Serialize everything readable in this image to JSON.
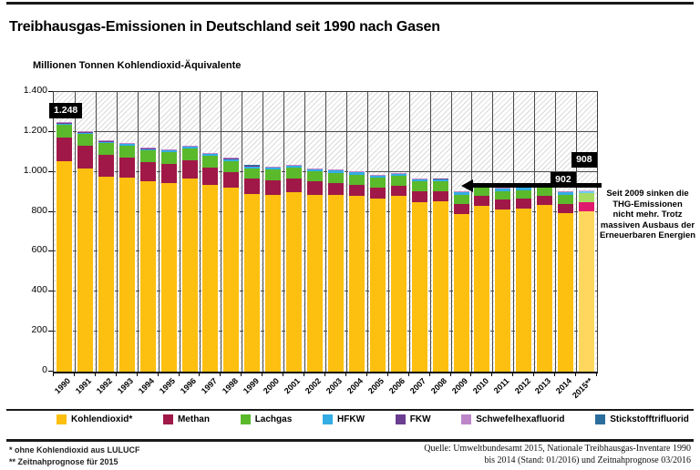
{
  "chart_data": {
    "type": "bar",
    "stacked": true,
    "title": "Treibhausgas-Emissionen in Deutschland seit 1990 nach Gasen",
    "axis_title": "Millionen Tonnen Kohlendioxid-Äquivalente",
    "categories": [
      "1990",
      "1991",
      "1992",
      "1993",
      "1994",
      "1995",
      "1996",
      "1997",
      "1998",
      "1999",
      "2000",
      "2001",
      "2002",
      "2003",
      "2004",
      "2005",
      "2006",
      "2007",
      "2008",
      "2009",
      "2010",
      "2011",
      "2012",
      "2013",
      "2014",
      "2015**"
    ],
    "series": [
      {
        "name": "Kohlendioxid*",
        "color": "#FDC010",
        "color_prognosis": "#FFD75E",
        "values": [
          1052,
          1018,
          978,
          972,
          951,
          945,
          967,
          934,
          919,
          889,
          886,
          899,
          886,
          884,
          878,
          866,
          878,
          850,
          853,
          789,
          832,
          812,
          818,
          835,
          795,
          801
        ]
      },
      {
        "name": "Methan",
        "color": "#A01848",
        "color_prognosis": "#E0196E",
        "values": [
          120,
          113,
          107,
          102,
          97,
          93,
          90,
          86,
          81,
          77,
          73,
          69,
          65,
          62,
          58,
          55,
          53,
          52,
          51,
          49,
          48,
          48,
          47,
          47,
          46,
          46
        ]
      },
      {
        "name": "Lachgas",
        "color": "#5BB92C",
        "color_prognosis": "#A8DB63",
        "values": [
          64,
          61,
          60,
          59,
          60,
          61,
          61,
          60,
          55,
          53,
          52,
          52,
          51,
          50,
          51,
          49,
          49,
          50,
          50,
          49,
          42,
          44,
          44,
          45,
          45,
          45
        ]
      },
      {
        "name": "HFKW",
        "color": "#33ADE3",
        "color_prognosis": "#70CBF1",
        "values": [
          5,
          5,
          5,
          6,
          6,
          7,
          7,
          8,
          9,
          9,
          9,
          10,
          10,
          10,
          10,
          10,
          10,
          10,
          10,
          11,
          11,
          11,
          11,
          11,
          11,
          11
        ]
      },
      {
        "name": "FKW",
        "color": "#6B3D91",
        "color_prognosis": "#9A77BC",
        "values": [
          3,
          3,
          3,
          3,
          3,
          3,
          3,
          3,
          2,
          2,
          2,
          2,
          2,
          2,
          2,
          2,
          2,
          2,
          2,
          2,
          2,
          2,
          2,
          2,
          2,
          2
        ]
      },
      {
        "name": "Schwefelhexafluorid",
        "color": "#BE85C9",
        "color_prognosis": "#D7B0DF",
        "values": [
          4,
          4,
          4,
          4,
          4,
          4,
          4,
          4,
          4,
          3,
          3,
          3,
          3,
          3,
          3,
          3,
          3,
          3,
          3,
          3,
          3,
          3,
          3,
          3,
          3,
          3
        ]
      },
      {
        "name": "Stickstofftrifluorid",
        "color": "#2B6E9D",
        "color_prognosis": "#6097BC",
        "values": [
          0.2,
          0.2,
          0.2,
          0.2,
          0.2,
          0.2,
          0.2,
          0.2,
          0.2,
          0.2,
          0.2,
          0.2,
          0.2,
          0.2,
          0.2,
          0.2,
          0.2,
          0.2,
          0.2,
          0.2,
          0.2,
          0.2,
          0.2,
          0.2,
          0.2,
          0.2
        ]
      }
    ],
    "ylim": [
      0,
      1400
    ],
    "ytick_step": 200,
    "ytick_labels": [
      "0",
      "200",
      "400",
      "600",
      "800",
      "1.000",
      "1.200",
      "1.400"
    ],
    "grid": true,
    "legend_position": "bottom",
    "bar_labels": [
      {
        "category": "1990",
        "text": "1.248",
        "row": 0
      },
      {
        "category": "2014",
        "text": "902",
        "row": 0
      },
      {
        "category": "2015**",
        "text": "908",
        "row": 1
      }
    ],
    "annotation": {
      "arrow_points_to_year": "2009",
      "lines": [
        "Seit 2009 sinken die",
        "THG-Emissionen",
        "nicht mehr. Trotz",
        "massiven Ausbaus der",
        "Erneuerbaren Energien"
      ]
    }
  },
  "footnotes": {
    "line1": "* ohne Kohlendioxid aus LULUCF",
    "line2": "** Zeitnahprognose für 2015"
  },
  "source": {
    "line1": "Quelle: Umweltbundesamt 2015, Nationale Treibhausgas-Inventare 1990",
    "line2": "bis 2014 (Stand: 01/2016) und Zeitnahprognose 03/2016"
  }
}
